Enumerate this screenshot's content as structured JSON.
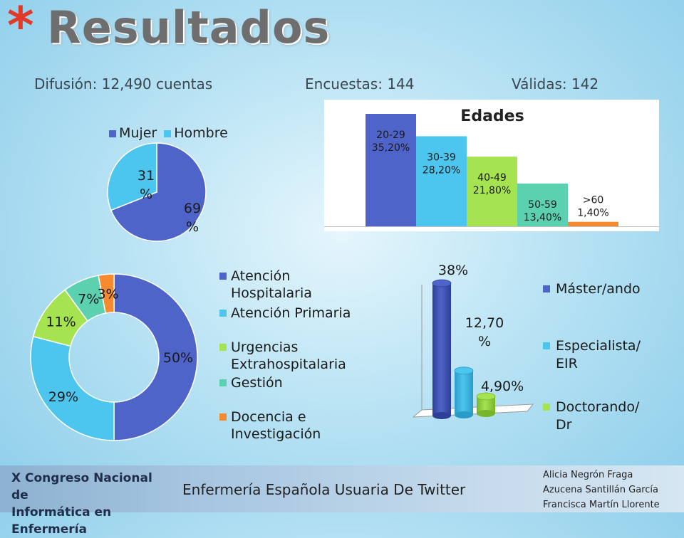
{
  "slide": {
    "title": "Resultados",
    "asterisk": "*",
    "stats": {
      "difusion": "Difusión: 12,490 cuentas",
      "encuestas": "Encuestas: 144",
      "validas": "Válidas: 142"
    }
  },
  "footer": {
    "logo_line1": "X Congreso Nacional de",
    "logo_line2": "Informática en Enfermería",
    "center_text": "Enfermería Española Usuaria De Twitter",
    "authors": [
      "Alicia Negrón Fraga",
      "Azucena Santillán García",
      "Francisca Martín Llorente"
    ]
  },
  "colors": {
    "blue": "#4f64c8",
    "cyan": "#4cc6ef",
    "green": "#a6e350",
    "teal": "#5bd1b0",
    "orange": "#f58a2e"
  },
  "chart_data": [
    {
      "id": "sexo",
      "type": "pie",
      "title": "",
      "legend": [
        "Mujer",
        "Hombre"
      ],
      "legend_position": "top",
      "values": [
        69,
        31
      ],
      "labels": [
        [
          "69",
          "%"
        ],
        [
          "31",
          "%"
        ]
      ]
    },
    {
      "id": "edades",
      "type": "bar",
      "title": "Edades",
      "categories": [
        "20-29",
        "30-39",
        "40-49",
        "50-59",
        ">60"
      ],
      "values": [
        35.2,
        28.2,
        21.8,
        13.4,
        1.4
      ],
      "value_labels": [
        "35,20%",
        "28,20%",
        "21,80%",
        "13,40%",
        "1,40%"
      ],
      "ylim": [
        0,
        35.2
      ]
    },
    {
      "id": "ambito",
      "type": "pie",
      "donut": true,
      "legend_position": "right",
      "categories": [
        "Atención Hospitalaria",
        "Atención Primaria",
        "Urgencias Extrahospitalaria",
        "Gestión",
        "Docencia e Investigación"
      ],
      "legend_lines": [
        [
          "Atención",
          "Hospitalaria"
        ],
        [
          "Atención Primaria"
        ],
        [
          "Urgencias",
          "Extrahospitalaria"
        ],
        [
          "Gestión"
        ],
        [
          "Docencia e",
          "Investigación"
        ]
      ],
      "values": [
        50,
        29,
        11,
        7,
        3
      ],
      "value_labels": [
        "50%",
        "29%",
        "11%",
        "7%",
        "3%"
      ]
    },
    {
      "id": "formacion",
      "type": "bar",
      "style": "3d-cylinder",
      "legend_position": "right",
      "categories": [
        "Máster/ando",
        "Especialista/ EIR",
        "Doctorando/ Dr"
      ],
      "legend_lines": [
        [
          "Máster/ando"
        ],
        [
          "Especialista/",
          "EIR"
        ],
        [
          "Doctorando/",
          "Dr"
        ]
      ],
      "values": [
        38,
        12.7,
        4.9
      ],
      "value_labels": [
        [
          "38%"
        ],
        [
          "12,70",
          "%"
        ],
        [
          "4,90%"
        ]
      ],
      "ylim": [
        0,
        38
      ]
    }
  ]
}
